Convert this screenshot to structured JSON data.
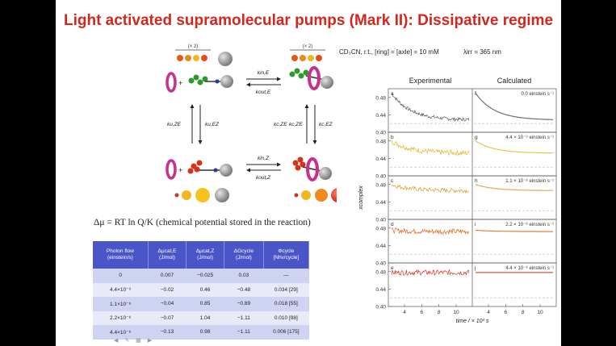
{
  "slide": {
    "title": "Light activated supramolecular pumps (Mark II): Dissipative regime",
    "conditions": "CD₃CN, r.t., [ring] = [axle] = 10 mM",
    "wavelength": "λirr = 365 nm",
    "chem_potential": "Δμ = RT ln Q/K (chemical potential stored in the reaction)"
  },
  "scheme": {
    "top_count_left": "(× 2)",
    "top_count_right": "(× 2)",
    "k_in_E": "kin,E",
    "k_out_E": "kout,E",
    "k_in_Z": "kin,Z",
    "k_out_Z": "kout,Z",
    "k_u_ZE": "ku,ZE",
    "k_u_ZE2": "ku,ZE",
    "k_u_EZ": "ku,EZ",
    "k_c_ZE": "kc,ZE",
    "k_c_ZE_hv": "kc,ZE",
    "k_c_EZ_hv": "kc,EZ",
    "plus": "+"
  },
  "table": {
    "headers": [
      "Photon flow (einstein/s)",
      "Δμcat,E (J/mol)",
      "Δμcat,Z (J/mol)",
      "ΔGcycle (J/mol)",
      "Φcycle [Nhv/cycle]"
    ],
    "rows": [
      [
        "0",
        "0.007",
        "−0.025",
        "0.03",
        "—"
      ],
      [
        "4.4×10⁻⁹",
        "−0.02",
        "0.46",
        "−0.48",
        "0.034 [29]"
      ],
      [
        "1.1×10⁻⁸",
        "−0.04",
        "0.85",
        "−0.89",
        "0.018 [55]"
      ],
      [
        "2.2×10⁻⁸",
        "−0.07",
        "1.04",
        "−1.11",
        "0.010 [98]"
      ],
      [
        "4.4×10⁻⁸",
        "−0.13",
        "0.98",
        "−1.11",
        "0.006 [175]"
      ]
    ]
  },
  "chart_data": {
    "type": "line",
    "column_titles": [
      "Experimental",
      "Calculated"
    ],
    "ylabel": "xcomplex",
    "xlabel": "time / × 10³ s",
    "x_ticks": [
      4,
      6,
      8,
      10
    ],
    "y_ticks": [
      "0.40",
      "0.44",
      "0.48"
    ],
    "xlim": [
      2.5,
      11.5
    ],
    "ylim": [
      0.4,
      0.5
    ],
    "panels": [
      {
        "exp_letter": "a",
        "calc_letter": "f",
        "flux": "0.0 einstein s⁻¹",
        "color": "#555555",
        "start": 0.49,
        "end": 0.428,
        "noise": 0.004
      },
      {
        "exp_letter": "b",
        "calc_letter": "g",
        "flux": "4.4 × 10⁻⁹ einstein s⁻¹",
        "color": "#e8b830",
        "start": 0.48,
        "end": 0.452,
        "noise": 0.006
      },
      {
        "exp_letter": "c",
        "calc_letter": "h",
        "flux": "1.1 × 10⁻⁸ einstein s⁻¹",
        "color": "#e39a28",
        "start": 0.48,
        "end": 0.466,
        "noise": 0.005
      },
      {
        "exp_letter": "d",
        "calc_letter": "i",
        "flux": "2.2 × 10⁻⁸ einstein s⁻¹",
        "color": "#e06a20",
        "start": 0.475,
        "end": 0.472,
        "noise": 0.006
      },
      {
        "exp_letter": "e",
        "calc_letter": "j",
        "flux": "4.4 × 10⁻⁸ einstein s⁻¹",
        "color": "#d93418",
        "start": 0.478,
        "end": 0.478,
        "noise": 0.006
      }
    ]
  },
  "nav": {
    "prev": "◀",
    "edit": "✎",
    "grid": "▦",
    "next": "▶"
  }
}
